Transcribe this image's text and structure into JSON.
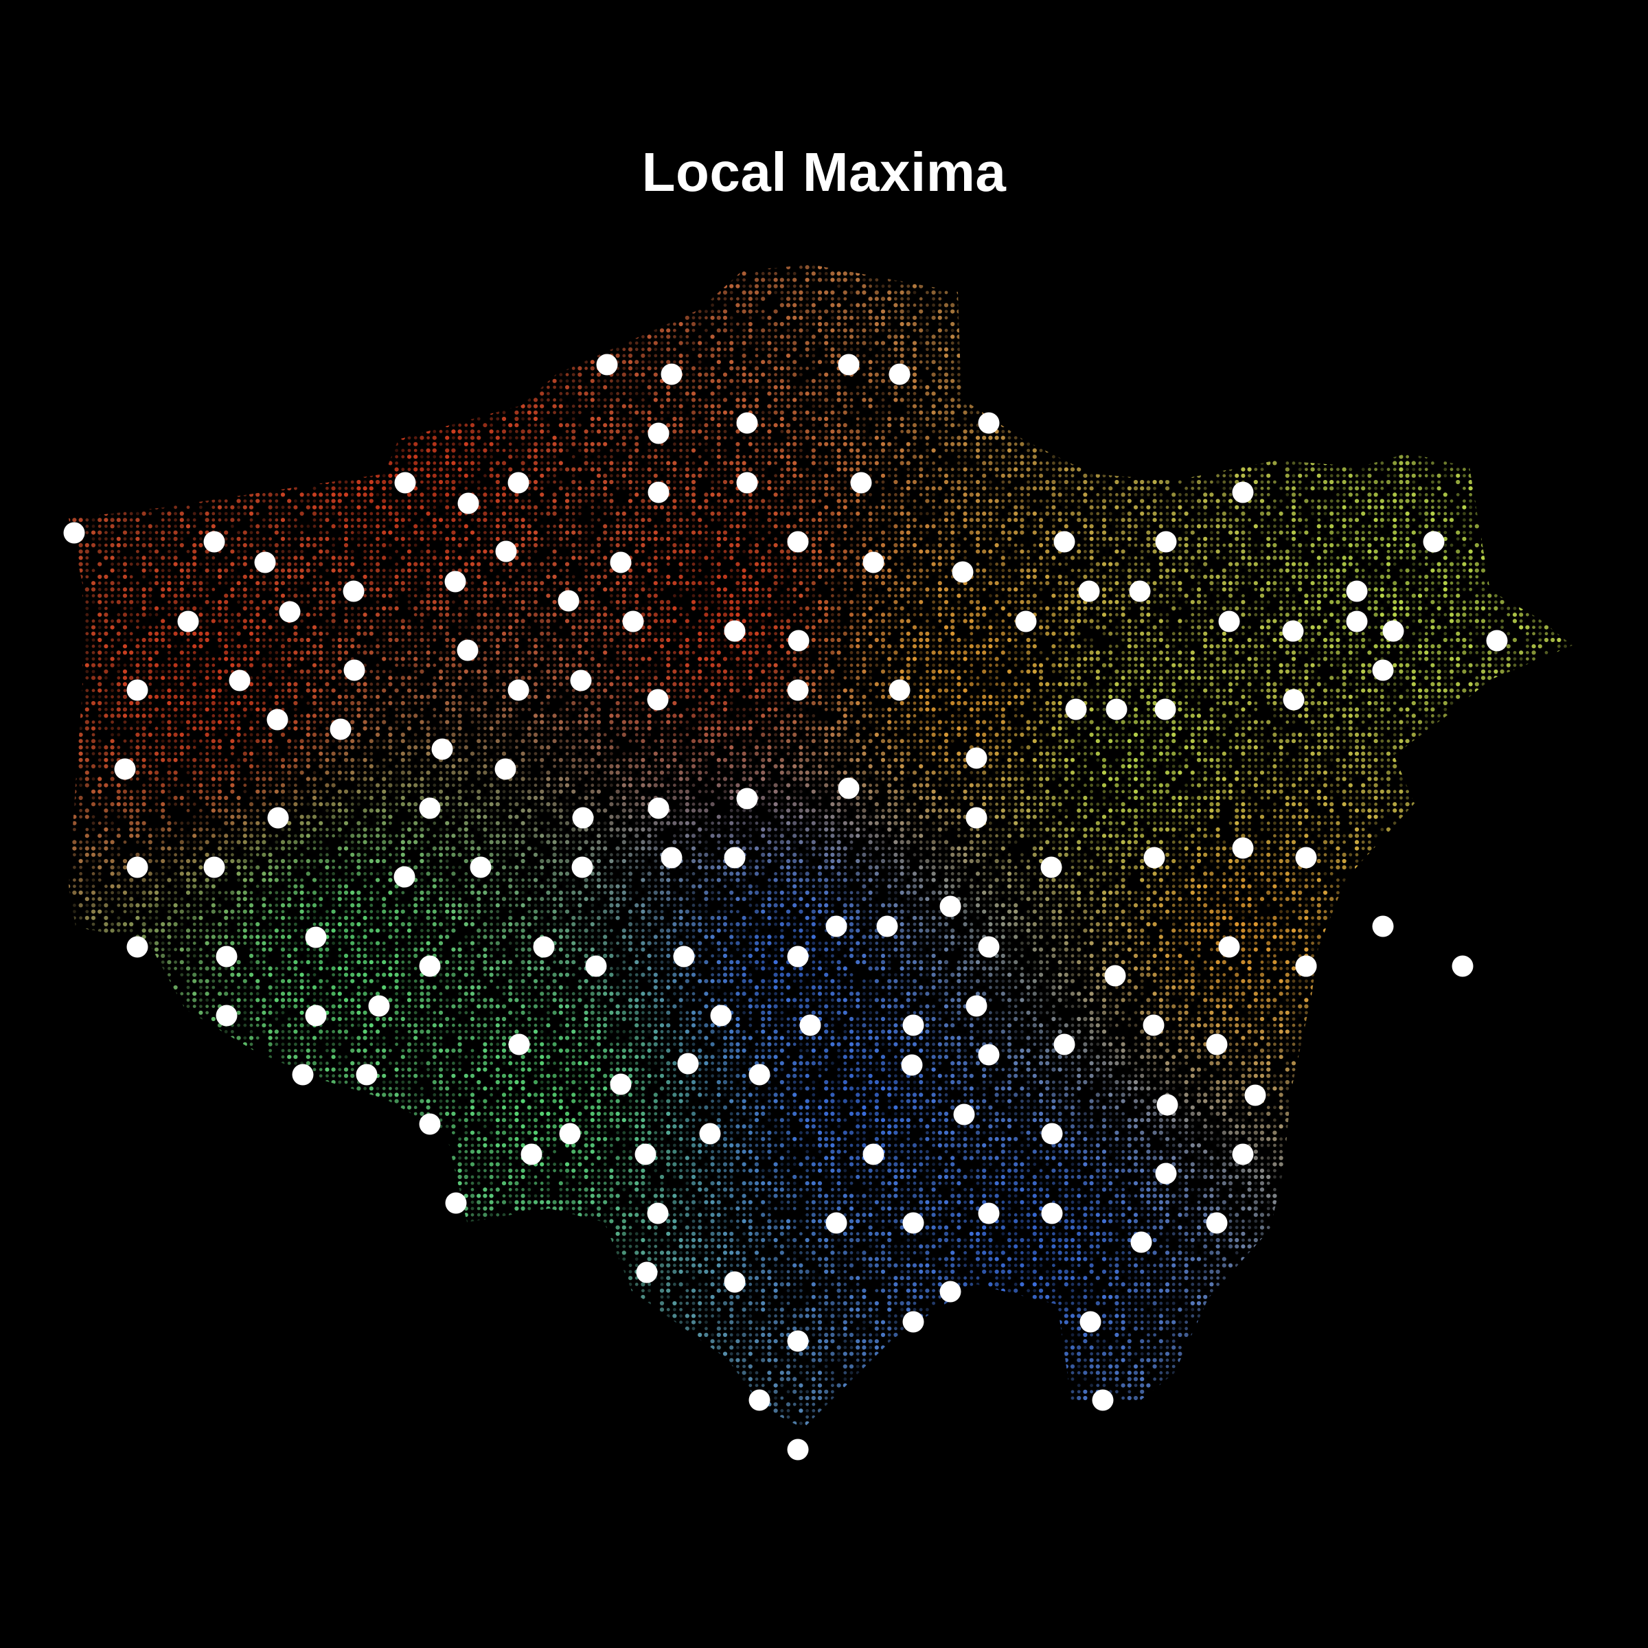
{
  "title": "Local Maxima",
  "colors": {
    "background": "#000000",
    "maxima_marker": "#ffffff",
    "red": "#d03a1c",
    "orange": "#e39a2e",
    "yellow_green": "#b8d64a",
    "green": "#58d874",
    "blue": "#3a6ee0"
  },
  "local_maxima_count": 152
}
